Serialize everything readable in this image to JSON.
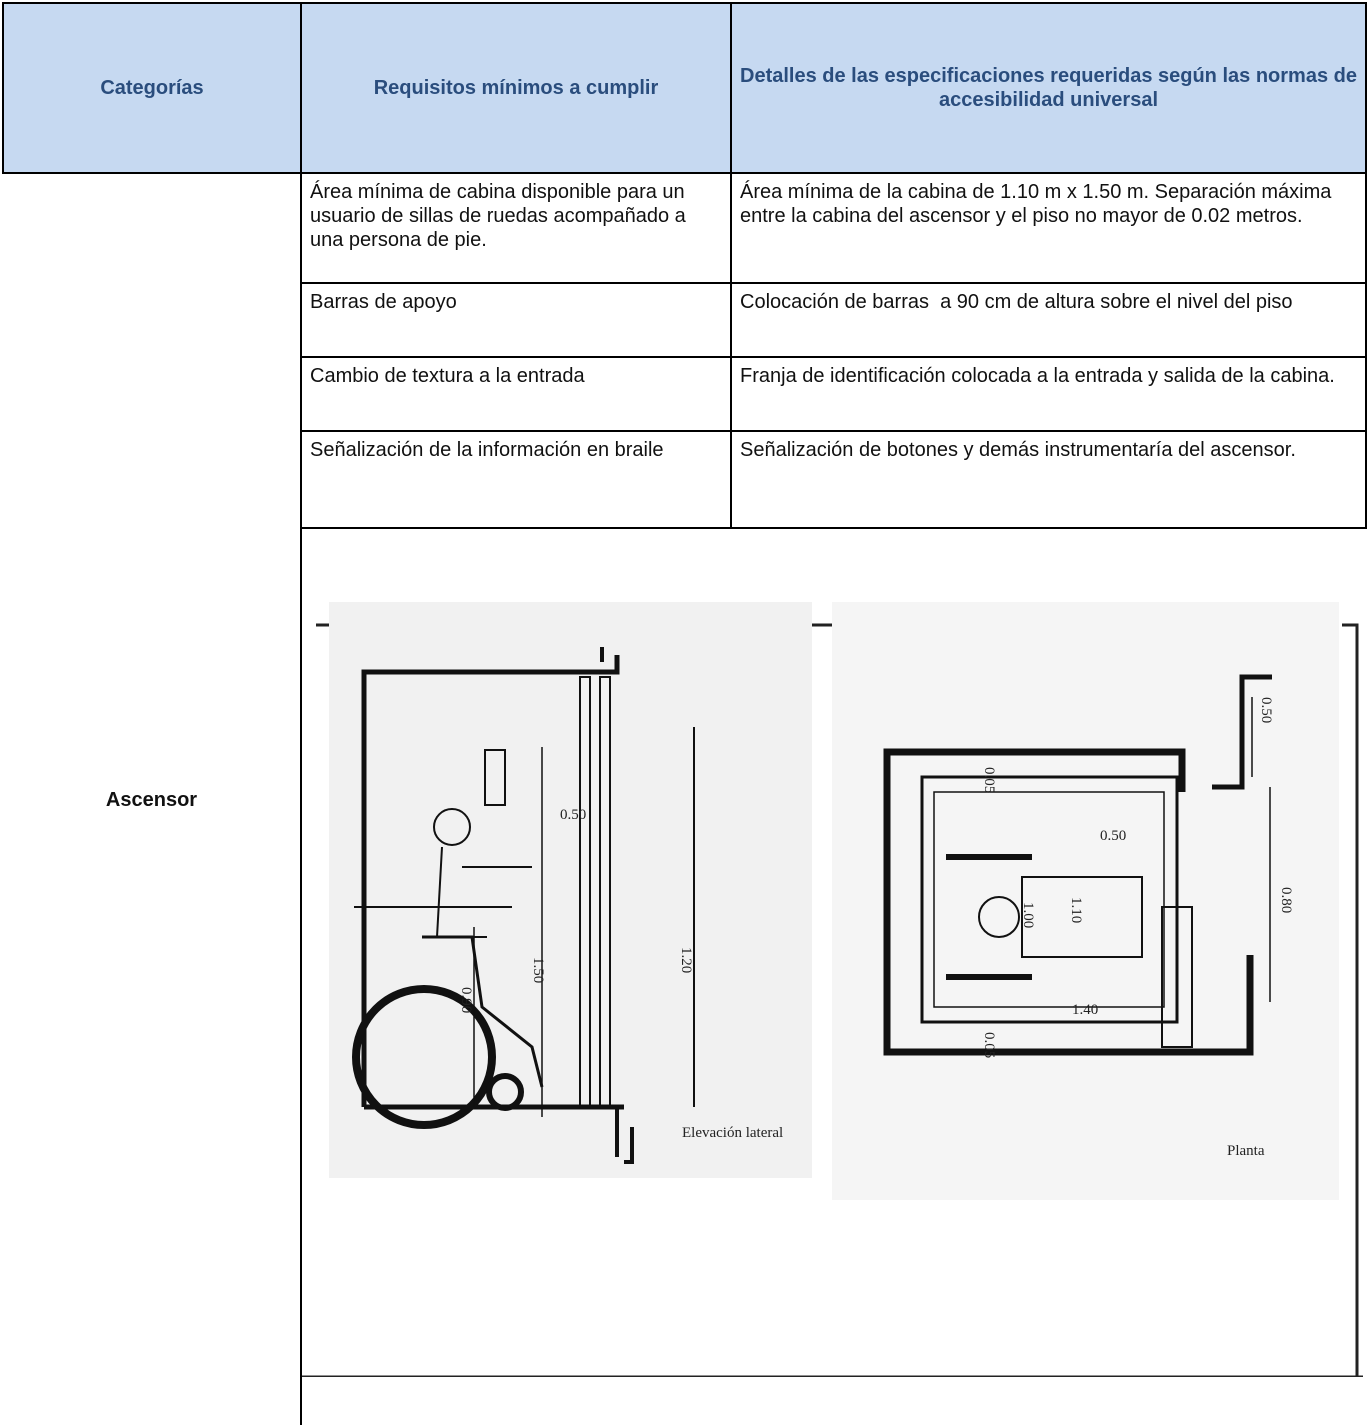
{
  "table": {
    "header": [
      "Categorías",
      "Requisitos mínimos a cumplir",
      "Detalles de las especificaciones requeridas según las normas de accesibilidad universal"
    ],
    "category": "Ascensor",
    "rows": [
      [
        "Área mínima de cabina disponible para un usuario de sillas de ruedas acompañado a una persona de pie.",
        "Área mínima de la cabina de 1.10 m x 1.50 m. Separación máxima entre la cabina del ascensor y el piso no mayor de 0.02 metros."
      ],
      [
        "Barras de apoyo",
        "Colocación de barras  a 90 cm de altura sobre el nivel del piso"
      ],
      [
        "Cambio de textura a la entrada",
        "Franja de identificación colocada a la entrada y salida de la cabina."
      ],
      [
        "Señalización de la información en braile",
        "Señalización de botones y demás instrumentaría del ascensor."
      ]
    ]
  },
  "figures": [
    {
      "caption": "Elevación lateral",
      "dimensions": [
        "0.50",
        "1.50",
        "1.20",
        "0.90"
      ]
    },
    {
      "caption": "Planta",
      "dimensions": [
        "0.50",
        "0.05",
        "1.00",
        "1.10",
        "0.80",
        "1.40",
        "0.05",
        "0.50"
      ]
    }
  ]
}
